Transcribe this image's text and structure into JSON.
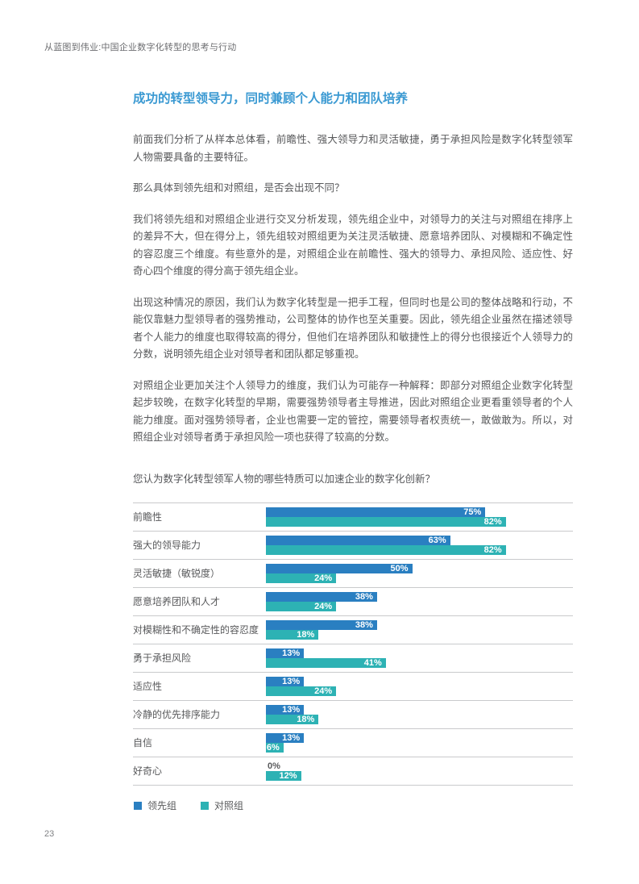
{
  "page": {
    "header": "从蓝图到伟业:中国企业数字化转型的思考与行动",
    "page_number": "23"
  },
  "article": {
    "heading": "成功的转型领导力，同时兼顾个人能力和团队培养",
    "paragraphs": [
      "前面我们分析了从样本总体看，前瞻性、强大领导力和灵活敏捷，勇于承担风险是数字化转型领军人物需要具备的主要特征。",
      "那么具体到领先组和对照组，是否会出现不同？",
      "我们将领先组和对照组企业进行交叉分析发现，领先组企业中，对领导力的关注与对照组在排序上的差异不大，但在得分上，领先组较对照组更为关注灵活敏捷、愿意培养团队、对模糊和不确定性的容忍度三个维度。有些意外的是，对照组企业在前瞻性、强大的领导力、承担风险、适应性、好奇心四个维度的得分高于领先组企业。",
      "出现这种情况的原因，我们认为数字化转型是一把手工程，但同时也是公司的整体战略和行动，不能仅靠魅力型领导者的强势推动，公司整体的协作也至关重要。因此，领先组企业虽然在描述领导者个人能力的维度也取得较高的得分，但他们在培养团队和敏捷性上的得分也很接近个人领导力的分数，说明领先组企业对领导者和团队都足够重视。",
      "对照组企业更加关注个人领导力的维度，我们认为可能存一种解释：即部分对照组企业数字化转型起步较晚，在数字化转型的早期，需要强势领导者主导推进，因此对照组企业更看重领导者的个人能力维度。面对强势领导者，企业也需要一定的管控，需要领导者权责统一，敢做敢为。所以，对照组企业对领导者勇于承担风险一项也获得了较高的分数。"
    ]
  },
  "chart_data": {
    "type": "bar",
    "orientation": "horizontal",
    "title": "您认为数字化转型领军人物的哪些特质可以加速企业的数字化创新？",
    "categories": [
      "前瞻性",
      "强大的领导能力",
      "灵活敏捷（敏锐度）",
      "愿意培养团队和人才",
      "对模糊性和不确定性的容忍度",
      "勇于承担风险",
      "适应性",
      "冷静的优先排序能力",
      "自信",
      "好奇心"
    ],
    "series": [
      {
        "name": "领先组",
        "color": "#2A7FC1",
        "values": [
          75,
          63,
          50,
          38,
          38,
          13,
          13,
          13,
          13,
          0
        ]
      },
      {
        "name": "对照组",
        "color": "#2DB2B4",
        "values": [
          82,
          82,
          24,
          24,
          18,
          41,
          24,
          18,
          6,
          12
        ]
      }
    ],
    "value_suffix": "%",
    "xlim": [
      0,
      100
    ],
    "grid": false,
    "legend_position": "bottom"
  },
  "colors": {
    "leading_group": "#2A7FC1",
    "control_group": "#2DB2B4",
    "heading_accent": "#3A99D2",
    "body_text": "#58595B",
    "separator": "#C9CACC"
  }
}
